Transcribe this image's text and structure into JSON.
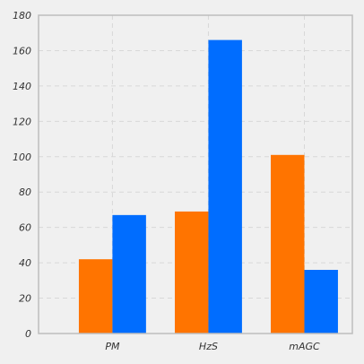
{
  "chart_data": {
    "type": "bar",
    "title": "",
    "xlabel": "",
    "ylabel": "",
    "categories": [
      "PM",
      "HzS",
      "mAGC"
    ],
    "series": [
      {
        "color": "#ff7400",
        "values": [
          42,
          69,
          101
        ]
      },
      {
        "color": "#006dff",
        "values": [
          67,
          166,
          36
        ]
      }
    ],
    "ylim": [
      0,
      180
    ],
    "yticks": [
      0,
      20,
      40,
      60,
      80,
      100,
      120,
      140,
      160,
      180
    ],
    "grid": true,
    "legend": "none"
  }
}
